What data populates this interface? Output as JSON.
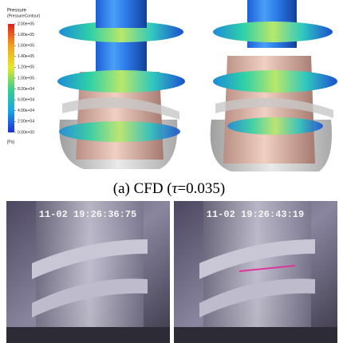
{
  "legend": {
    "title": "Pressure",
    "subtitle": "(PressureContour)",
    "labels": [
      "2.00e+05",
      "1.80e+05",
      "1.60e+05",
      "1.40e+05",
      "1.20e+05",
      "1.00e+05",
      "8.00e+04",
      "6.00e+04",
      "4.00e+04",
      "2.00e+04",
      "0.00e+00"
    ],
    "unit": "[Pa]"
  },
  "caption": {
    "prefix": "(a) CFD (",
    "symbol": "τ",
    "suffix": "=0.035)"
  },
  "photos": [
    {
      "timestamp": "11-02 19:26:36:75"
    },
    {
      "timestamp": "11-02 19:26:43:19"
    }
  ]
}
